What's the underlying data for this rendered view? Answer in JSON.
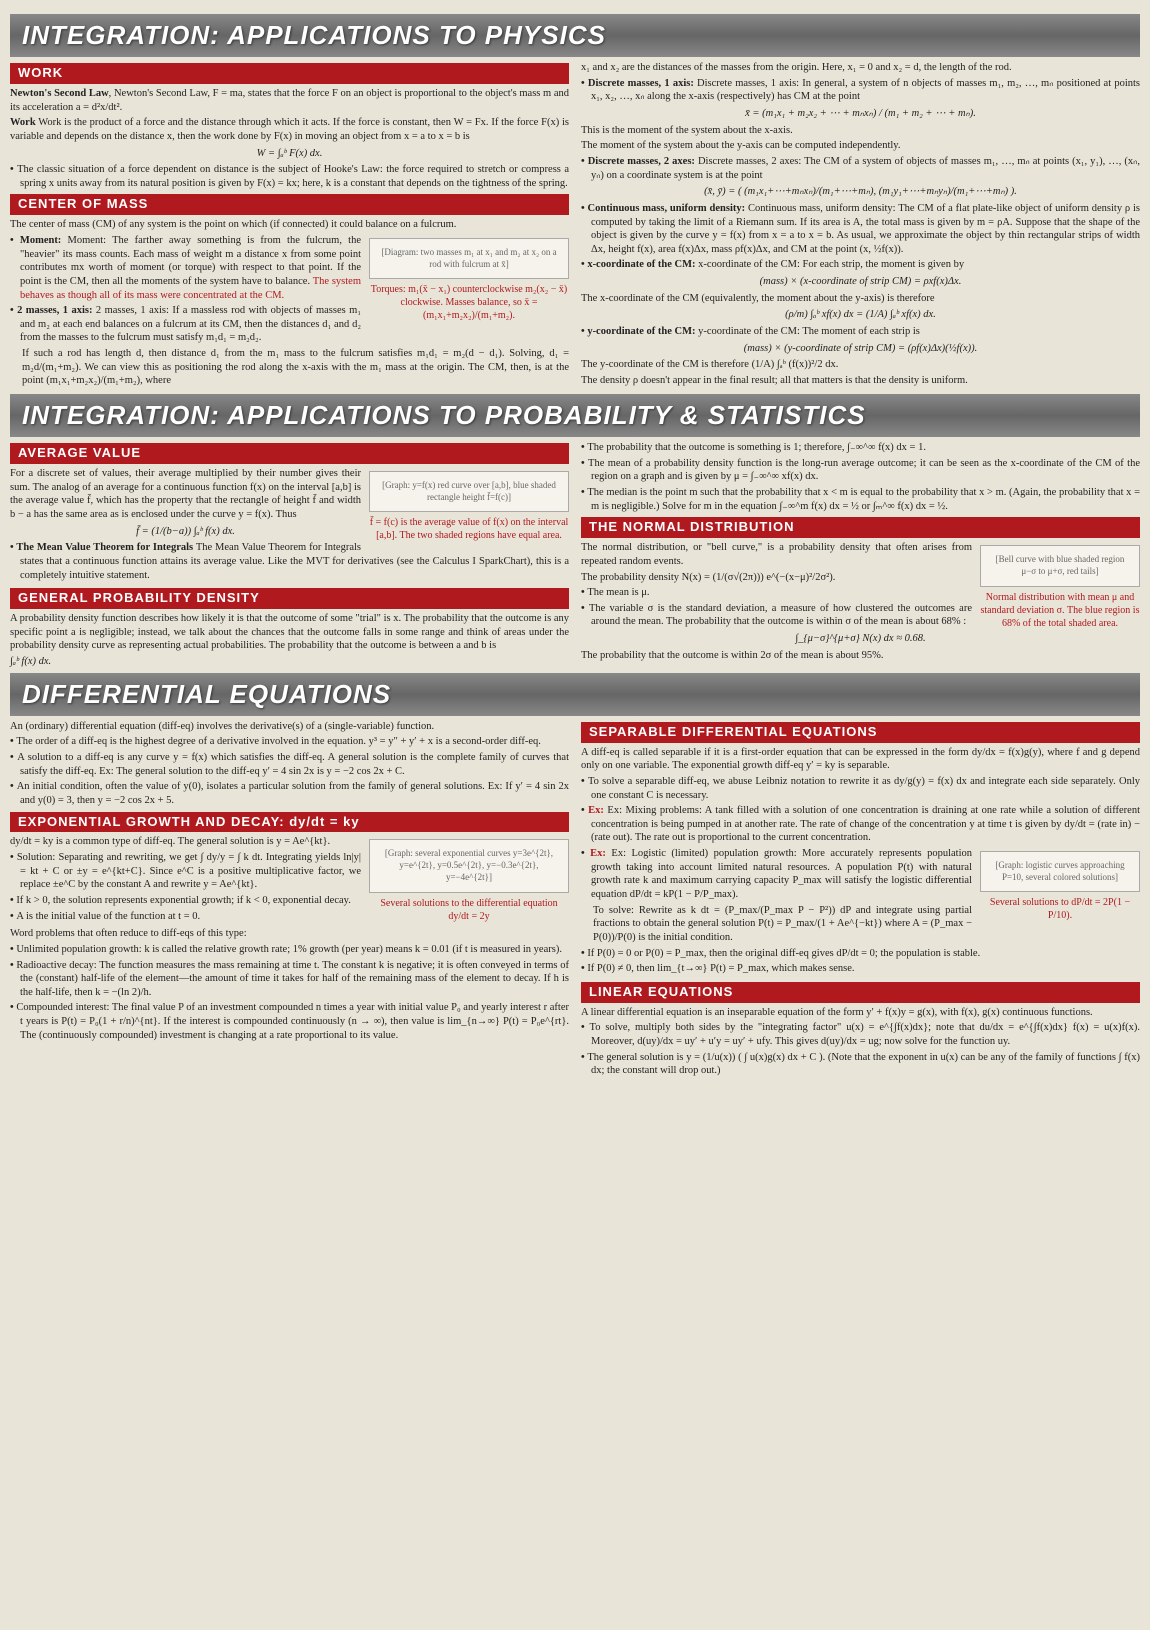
{
  "headers": {
    "h1": "INTEGRATION: APPLICATIONS TO PHYSICS",
    "h2": "INTEGRATION: APPLICATIONS TO PROBABILITY & STATISTICS",
    "h3": "DIFFERENTIAL EQUATIONS"
  },
  "sections": {
    "work": "WORK",
    "com": "CENTER OF MASS",
    "avg": "AVERAGE VALUE",
    "gpd": "GENERAL PROBABILITY DENSITY",
    "normal": "THE NORMAL DISTRIBUTION",
    "sep": "SEPARABLE DIFFERENTIAL EQUATIONS",
    "exp": "EXPONENTIAL GROWTH AND DECAY: dy/dt = ky",
    "linear": "LINEAR EQUATIONS"
  },
  "physics": {
    "work_p1": "Newton's Second Law, F = ma, states that the force F on an object is proportional to the object's mass m and its acceleration a = d²x/dt².",
    "work_p2": "Work is the product of a force and the distance through which it acts. If the force is constant, then W = Fx. If the force F(x) is variable and depends on the distance x, then the work done by F(x) in moving an object from x = a to x = b is",
    "work_formula": "W = ∫ₐᵇ F(x) dx.",
    "work_li1": "The classic situation of a force dependent on distance is the subject of Hooke's Law: the force required to stretch or compress a spring x units away from its natural position is given by F(x) = kx; here, k is a constant that depends on the tightness of the spring.",
    "com_p1": "The center of mass (CM) of any system is the point on which (if connected) it could balance on a fulcrum.",
    "com_li1a": "Moment: The farther away something is from the fulcrum, the \"heavier\" its mass counts. Each mass of weight m a distance x from some point contributes mx worth of moment (or torque) with respect to that point. If the point is the CM, then all the moments of the system have to balance.",
    "com_li1b": "The system behaves as though all of its mass were concentrated at the CM.",
    "com_fig1": "[Diagram: two masses m₁ at x₁ and m₂ at x₂ on a rod with fulcrum at x̄]",
    "com_fig1_cap": "Torques: m₁(x̄ − x₁) counterclockwise m₂(x₂ − x̄) clockwise. Masses balance, so x̄ = (m₁x₁+m₂x₂)/(m₁+m₂).",
    "com_li2": "2 masses, 1 axis: If a massless rod with objects of masses m₁ and m₂ at each end balances on a fulcrum at its CM, then the distances d₁ and d₂ from the masses to the fulcrum must satisfy m₁d₁ = m₂d₂.",
    "com_li2b": "If such a rod has length d, then distance d₁ from the m₁ mass to the fulcrum satisfies m₁d₁ = m₂(d − d₁). Solving, d₁ = m₂d/(m₁+m₂). We can view this as positioning the rod along the x-axis with the m₁ mass at the origin. The CM, then, is at the point (m₁x₁+m₂x₂)/(m₁+m₂), where",
    "phys_r1": "x₁ and x₂ are the distances of the masses from the origin. Here, x₁ = 0 and x₂ = d, the length of the rod.",
    "phys_r_li1": "Discrete masses, 1 axis: In general, a system of n objects of masses m₁, m₂, …, mₙ positioned at points x₁, x₂, …, xₙ along the x-axis (respectively) has CM at the point",
    "phys_r_f1": "x̄ = (m₁x₁ + m₂x₂ + ⋯ + mₙxₙ) / (m₁ + m₂ + ⋯ + mₙ).",
    "phys_r_p1": "This is the moment of the system about the x-axis.",
    "phys_r_p2": "The moment of the system about the y-axis can be computed independently.",
    "phys_r_li2": "Discrete masses, 2 axes: The CM of a system of objects of masses m₁, …, mₙ at points (x₁, y₁), …, (xₙ, yₙ) on a coordinate system is at the point",
    "phys_r_f2": "(x̄, ȳ) = ( (m₁x₁+⋯+mₙxₙ)/(m₁+⋯+mₙ), (m₁y₁+⋯+mₙyₙ)/(m₁+⋯+mₙ) ).",
    "phys_r_li3": "Continuous mass, uniform density: The CM of a flat plate-like object of uniform density ρ is computed by taking the limit of a Riemann sum. If its area is A, the total mass is given by m = ρA. Suppose that the shape of the object is given by the curve y = f(x) from x = a to x = b. As usual, we approximate the object by thin rectangular strips of width Δx, height f(x), area f(x)Δx, mass ρf(x)Δx, and CM at the point (x, ½f(x)).",
    "phys_r_li4": "x-coordinate of the CM: For each strip, the moment is given by",
    "phys_r_f3": "(mass) × (x-coordinate of strip CM) = ρxf(x)Δx.",
    "phys_r_p3": "The x-coordinate of the CM (equivalently, the moment about the y-axis) is therefore",
    "phys_r_f4": "(ρ/m) ∫ₐᵇ xf(x) dx = (1/A) ∫ₐᵇ xf(x) dx.",
    "phys_r_li5": "y-coordinate of the CM: The moment of each strip is",
    "phys_r_f5": "(mass) × (y-coordinate of strip CM) = (ρf(x)Δx)(½f(x)).",
    "phys_r_p4": "The y-coordinate of the CM is therefore (1/A) ∫ₐᵇ (f(x))²/2 dx.",
    "phys_r_p5": "The density ρ doesn't appear in the final result; all that matters is that the density is uniform."
  },
  "prob": {
    "avg_p1": "For a discrete set of values, their average multiplied by their number gives their sum. The analog of an average for a continuous function f(x) on the interval [a,b] is the average value f̄, which has the property that the rectangle of height f̄ and width b − a has the same area as is enclosed under the curve y = f(x). Thus",
    "avg_f1": "f̄ = (1/(b−a)) ∫ₐᵇ f(x) dx.",
    "avg_li1": "The Mean Value Theorem for Integrals states that a continuous function attains its average value. Like the MVT for derivatives (see the Calculus I SparkChart), this is a completely intuitive statement.",
    "avg_fig": "[Graph: y=f(x) red curve over [a,b], blue shaded rectangle height f̄=f(c)]",
    "avg_cap": "f̄ = f(c) is the average value of f(x) on the interval [a,b]. The two shaded regions have equal area.",
    "gpd_p1": "A probability density function describes how likely it is that the outcome of some \"trial\" is x. The probability that the outcome is any specific point a is negligible; instead, we talk about the chances that the outcome falls in some range and think of areas under the probability density curve as representing actual probabilities. The probability that the outcome is between a and b is",
    "gpd_f1": "∫ₐᵇ f(x) dx.",
    "prob_r_li1": "The probability that the outcome is something is 1; therefore, ∫₋∞^∞ f(x) dx = 1.",
    "prob_r_li2": "The mean of a probability density function is the long-run average outcome; it can be seen as the x-coordinate of the CM of the region on a graph and is given by μ = ∫₋∞^∞ xf(x) dx.",
    "prob_r_li3": "The median is the point m such that the probability that x < m is equal to the probability that x > m. (Again, the probability that x = m is negligible.) Solve for m in the equation ∫₋∞^m f(x) dx = ½ or ∫ₘ^∞ f(x) dx = ½.",
    "normal_p1": "The normal distribution, or \"bell curve,\" is a probability density that often arises from repeated random events.",
    "normal_p2": "The probability density N(x) = (1/(σ√(2π))) e^(−(x−μ)²/2σ²).",
    "normal_li1": "The mean is μ.",
    "normal_li2": "The variable σ is the standard deviation, a measure of how clustered the outcomes are around the mean. The probability that the outcome is within σ of the mean is about 68% :",
    "normal_f1": "∫_{μ−σ}^{μ+σ} N(x) dx ≈ 0.68.",
    "normal_p3": "The probability that the outcome is within 2σ of the mean is about 95%.",
    "normal_fig": "[Bell curve with blue shaded region μ−σ to μ+σ, red tails]",
    "normal_cap": "Normal distribution with mean μ and standard deviation σ. The blue region is 68% of the total shaded area."
  },
  "diff": {
    "intro_p1": "An (ordinary) differential equation (diff-eq) involves the derivative(s) of a (single-variable) function.",
    "intro_li1": "The order of a diff-eq is the highest degree of a derivative involved in the equation. y³ = y″ + y′ + x is a second-order diff-eq.",
    "intro_li2": "A solution to a diff-eq is any curve y = f(x) which satisfies the diff-eq. A general solution is the complete family of curves that satisfy the diff-eq. Ex: The general solution to the diff-eq y′ = 4 sin 2x is y = −2 cos 2x + C.",
    "intro_li3": "An initial condition, often the value of y(0), isolates a particular solution from the family of general solutions. Ex: If y′ = 4 sin 2x and y(0) = 3, then y = −2 cos 2x + 5.",
    "exp_p1": "dy/dt = ky is a common type of diff-eq. The general solution is y = Ae^{kt}.",
    "exp_li1": "Solution: Separating and rewriting, we get ∫ dy/y = ∫ k dt. Integrating yields ln|y| = kt + C or ±y = e^{kt+C}. Since e^C is a positive multiplicative factor, we replace ±e^C by the constant A and rewrite y = Ae^{kt}.",
    "exp_li2": "If k > 0, the solution represents exponential growth; if k < 0, exponential decay.",
    "exp_li3": "A is the initial value of the function at t = 0.",
    "exp_fig": "[Graph: several exponential curves y=3e^{2t}, y=e^{2t}, y=0.5e^{2t}, y=−0.3e^{2t}, y=−4e^{2t}]",
    "exp_cap": "Several solutions to the differential equation dy/dt = 2y",
    "word_p1": "Word problems that often reduce to diff-eqs of this type:",
    "word_li1": "Unlimited population growth: k is called the relative growth rate; 1% growth (per year) means k = 0.01 (if t is measured in years).",
    "word_li2": "Radioactive decay: The function measures the mass remaining at time t. The constant k is negative; it is often conveyed in terms of the (constant) half-life of the element—the amount of time it takes for half of the remaining mass of the element to decay. If h is the half-life, then k = −(ln 2)/h.",
    "word_li3": "Compounded interest: The final value P of an investment compounded n times a year with initial value P₀ and yearly interest r after t years is P(t) = P₀(1 + r/n)^{nt}. If the interest is compounded continuously (n → ∞), then value is lim_{n→∞} P(t) = P₀e^{rt}. The (continuously compounded) investment is changing at a rate proportional to its value.",
    "sep_p1": "A diff-eq is called separable if it is a first-order equation that can be expressed in the form dy/dx = f(x)g(y), where f and g depend only on one variable. The exponential growth diff-eq y′ = ky is separable.",
    "sep_li1": "To solve a separable diff-eq, we abuse Leibniz notation to rewrite it as dy/g(y) = f(x) dx and integrate each side separately. Only one constant C is necessary.",
    "sep_li2": "Ex: Mixing problems: A tank filled with a solution of one concentration is draining at one rate while a solution of different concentration is being pumped in at another rate. The rate of change of the concentration y at time t is given by dy/dt = (rate in) − (rate out). The rate out is proportional to the current concentration.",
    "sep_li3a": "Ex: Logistic (limited) population growth: More accurately represents population growth taking into account limited natural resources. A population P(t) with natural growth rate k and maximum carrying capacity P_max will satisfy the logistic differential equation dP/dt = kP(1 − P/P_max).",
    "sep_li3b": "To solve: Rewrite as k dt = (P_max/(P_max P − P²)) dP and integrate using partial fractions to obtain the general solution P(t) = P_max/(1 + Ae^{−kt}) where A = (P_max − P(0))/P(0) is the initial condition.",
    "sep_li3c": "If P(0) = 0 or P(0) = P_max, then the original diff-eq gives dP/dt = 0; the population is stable.",
    "sep_li3d": "If P(0) ≠ 0, then lim_{t→∞} P(t) = P_max, which makes sense.",
    "sep_fig": "[Graph: logistic curves approaching P=10, several colored solutions]",
    "sep_cap": "Several solutions to dP/dt = 2P(1 − P/10).",
    "lin_p1": "A linear differential equation is an inseparable equation of the form y′ + f(x)y = g(x), with f(x), g(x) continuous functions.",
    "lin_li1": "To solve, multiply both sides by the \"integrating factor\" u(x) = e^{∫f(x)dx}; note that du/dx = e^{∫f(x)dx} f(x) = u(x)f(x). Moreover, d(uy)/dx = uy′ + u′y = uy′ + ufy. This gives d(uy)/dx = ug; now solve for the function uy.",
    "lin_li2": "The general solution is y = (1/u(x)) ( ∫ u(x)g(x) dx + C ). (Note that the exponent in u(x) can be any of the family of functions ∫ f(x) dx; the constant will drop out.)"
  }
}
